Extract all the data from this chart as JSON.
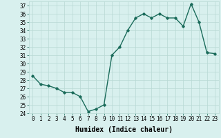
{
  "x": [
    0,
    1,
    2,
    3,
    4,
    5,
    6,
    7,
    8,
    9,
    10,
    11,
    12,
    13,
    14,
    15,
    16,
    17,
    18,
    19,
    20,
    21,
    22,
    23
  ],
  "y": [
    28.5,
    27.5,
    27.3,
    27.0,
    26.5,
    26.5,
    26.0,
    24.2,
    24.5,
    25.0,
    31.0,
    32.0,
    34.0,
    35.5,
    36.0,
    35.5,
    36.0,
    35.5,
    35.5,
    34.5,
    37.2,
    35.0,
    31.3,
    31.2
  ],
  "line_color": "#1a6b5a",
  "marker": "D",
  "marker_size": 1.8,
  "bg_color": "#d8f0ee",
  "grid_color": "#b8d8d4",
  "xlabel": "Humidex (Indice chaleur)",
  "xlim": [
    -0.5,
    23.5
  ],
  "ylim": [
    24,
    37.5
  ],
  "yticks": [
    24,
    25,
    26,
    27,
    28,
    29,
    30,
    31,
    32,
    33,
    34,
    35,
    36,
    37
  ],
  "xticks": [
    0,
    1,
    2,
    3,
    4,
    5,
    6,
    7,
    8,
    9,
    10,
    11,
    12,
    13,
    14,
    15,
    16,
    17,
    18,
    19,
    20,
    21,
    22,
    23
  ],
  "tick_label_size": 5.5,
  "xlabel_size": 7,
  "linewidth": 1.0
}
